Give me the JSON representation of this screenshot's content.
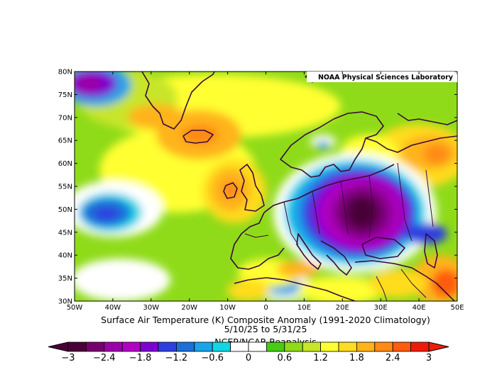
{
  "map": {
    "credit": "NOAA Physical Sciences Laboratory",
    "title": "Surface Air Temperature (K) Composite Anomaly (1991-2020 Climatology)",
    "dates": "5/10/25  to 5/31/25",
    "source": "NCEP/NCAR Reanalysis",
    "lat_labels": [
      "80N",
      "75N",
      "70N",
      "65N",
      "60N",
      "55N",
      "50N",
      "45N",
      "40N",
      "35N",
      "30N"
    ],
    "lon_labels": [
      "50W",
      "40W",
      "30W",
      "20W",
      "10W",
      "0",
      "10E",
      "20E",
      "30E",
      "40E",
      "50E"
    ],
    "lon_range": [
      -50,
      50
    ],
    "lat_range": [
      30,
      80
    ]
  },
  "colorbar": {
    "labels": [
      "-3",
      "-2.4",
      "-1.8",
      "-1.2",
      "-0.6",
      "0",
      "0.6",
      "1.2",
      "1.8",
      "2.4",
      "3"
    ],
    "colors": [
      "#4a0037",
      "#76006e",
      "#9b00a8",
      "#b300c4",
      "#7d00d1",
      "#2d3fe0",
      "#1b70d8",
      "#1aa3e8",
      "#12d6e6",
      "#ffffff",
      "#ffffff",
      "#46cc13",
      "#8fdb19",
      "#c8e52a",
      "#ffff33",
      "#ffdc1f",
      "#ffb31a",
      "#ff8a14",
      "#ff5c0d",
      "#ee1d0a"
    ]
  }
}
